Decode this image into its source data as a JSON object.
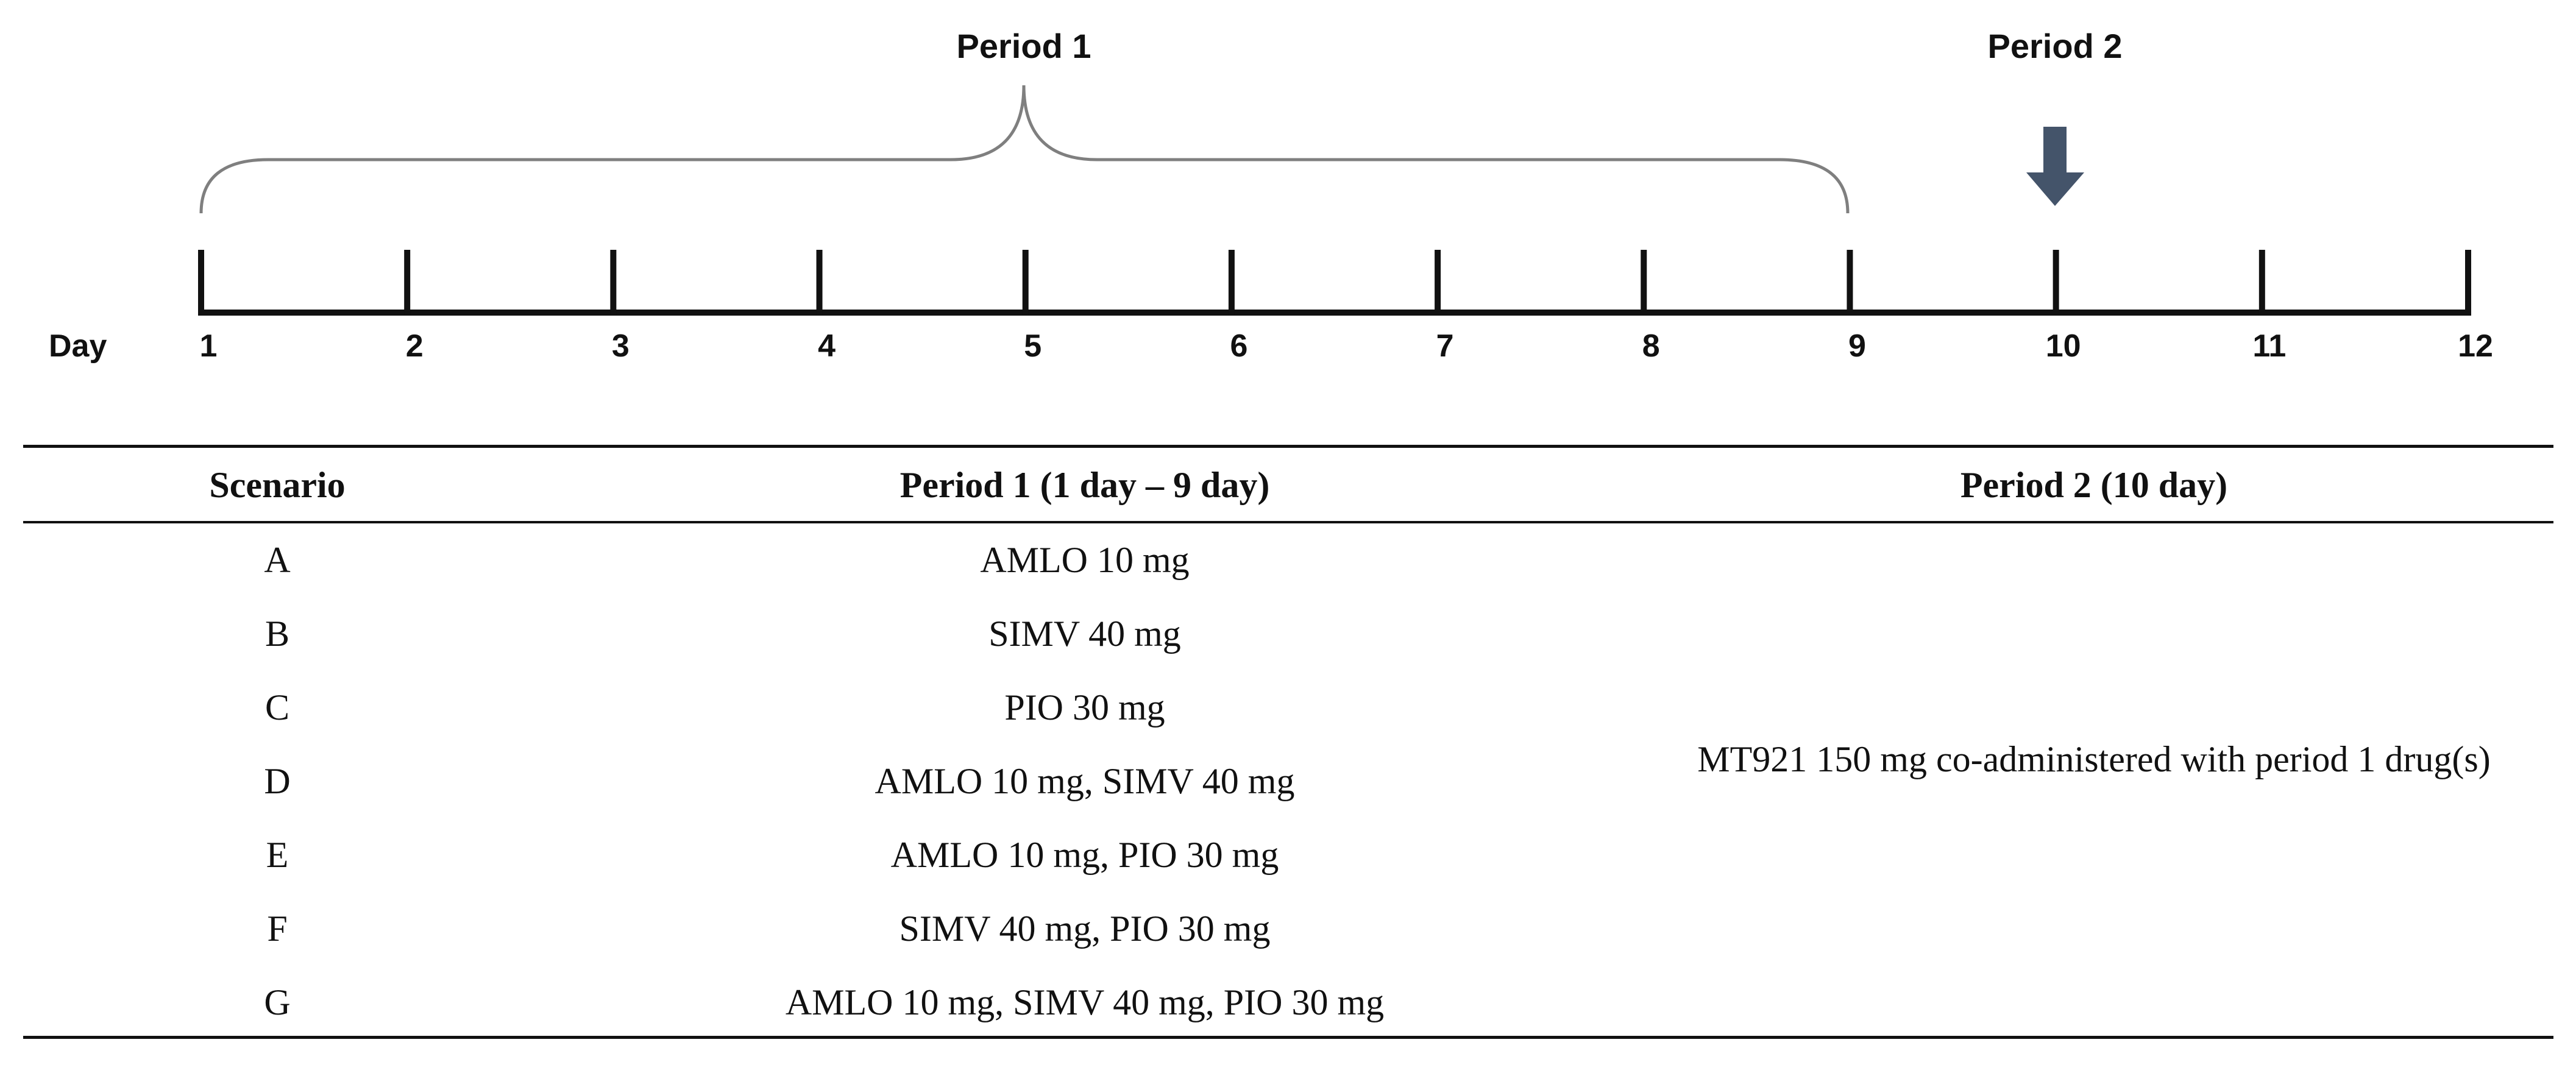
{
  "timeline": {
    "day_label": "Day",
    "days": [
      "1",
      "2",
      "3",
      "4",
      "5",
      "6",
      "7",
      "8",
      "9",
      "10",
      "11",
      "12"
    ],
    "period1_label": "Period  1",
    "period2_label": "Period  2",
    "period1_span_days": [
      1,
      9
    ],
    "period2_day": 10,
    "arrow_color": "#44546a"
  },
  "table": {
    "headers": {
      "scenario": "Scenario",
      "period1": "Period 1 (1 day – 9 day)",
      "period2": "Period 2 (10 day)"
    },
    "rows": [
      {
        "scenario": "A",
        "period1": "AMLO 10 mg"
      },
      {
        "scenario": "B",
        "period1": "SIMV 40 mg"
      },
      {
        "scenario": "C",
        "period1": "PIO 30 mg"
      },
      {
        "scenario": "D",
        "period1": "AMLO 10 mg, SIMV 40 mg"
      },
      {
        "scenario": "E",
        "period1": "AMLO 10 mg, PIO 30 mg"
      },
      {
        "scenario": "F",
        "period1": "SIMV 40 mg, PIO 30 mg"
      },
      {
        "scenario": "G",
        "period1": "AMLO 10 mg, SIMV 40 mg, PIO 30 mg"
      }
    ],
    "period2_merged": "MT921 150 mg co-administered with period 1 drug(s)"
  }
}
